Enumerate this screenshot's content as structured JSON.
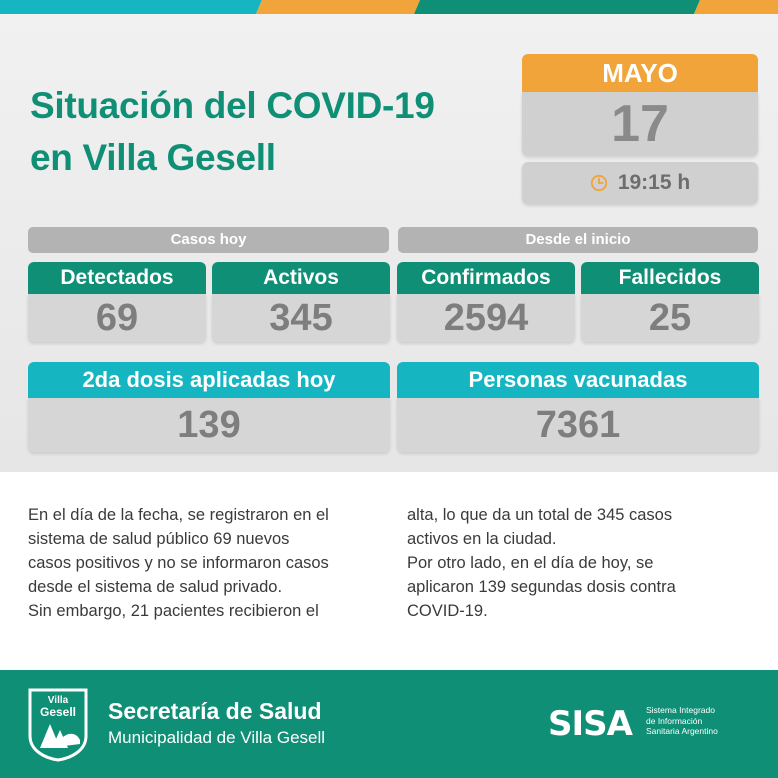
{
  "header": {
    "title_line1": "Situación del COVID-19",
    "title_line2": "en Villa Gesell"
  },
  "date": {
    "month": "MAYO",
    "day": "17",
    "time": "19:15 h"
  },
  "sections": {
    "today": "Casos hoy",
    "since_start": "Desde el inicio"
  },
  "stats": [
    {
      "label": "Detectados",
      "value": "69"
    },
    {
      "label": "Activos",
      "value": "345"
    },
    {
      "label": "Confirmados",
      "value": "2594"
    },
    {
      "label": "Fallecidos",
      "value": "25"
    }
  ],
  "vaccination": [
    {
      "label": "2da dosis aplicadas hoy",
      "value": "139"
    },
    {
      "label": "Personas vacunadas",
      "value": "7361"
    }
  ],
  "body_text": {
    "left": [
      "En el día de la fecha, se registraron en el",
      "sistema de salud público 69 nuevos",
      "casos positivos y no se informaron casos",
      "desde el sistema de salud privado.",
      "Sin embargo, 21 pacientes recibieron el"
    ],
    "right": [
      "alta, lo que da un total de 345 casos",
      "activos en la ciudad.",
      "Por otro lado, en el día de hoy, se",
      "aplicaron 139 segundas dosis contra",
      "COVID-19."
    ]
  },
  "footer": {
    "logo_text_line1": "Villa",
    "logo_text_line2": "Gesell",
    "secretaria": "Secretaría de Salud",
    "municipalidad": "Municipalidad de Villa Gesell",
    "sisa_logo": "SISA",
    "sisa_line1": "Sistema Integrado",
    "sisa_line2": "de Información",
    "sisa_line3": "Sanitaria Argentino"
  },
  "colors": {
    "green": "#0f8f76",
    "cyan": "#16b5c2",
    "orange": "#f0a439",
    "gray": "#d6d6d6"
  },
  "icons": {
    "clock": "clock-icon"
  }
}
